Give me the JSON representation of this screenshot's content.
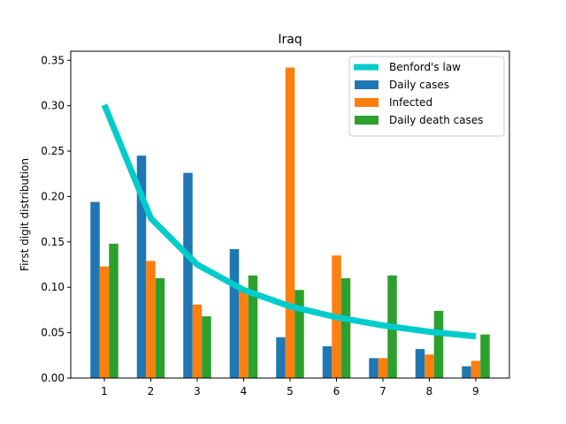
{
  "chart_data": {
    "type": "bar",
    "title": "Iraq",
    "xlabel": "",
    "ylabel": "First digit distribution",
    "categories": [
      "1",
      "2",
      "3",
      "4",
      "5",
      "6",
      "7",
      "8",
      "9"
    ],
    "ylim": [
      0,
      0.36
    ],
    "yticks": [
      "0.00",
      "0.05",
      "0.10",
      "0.15",
      "0.20",
      "0.25",
      "0.30",
      "0.35"
    ],
    "grid": false,
    "legend_position": "top-right",
    "series": [
      {
        "name": "Daily cases",
        "type": "bar",
        "color": "#1f77b4",
        "values": [
          0.194,
          0.245,
          0.226,
          0.142,
          0.045,
          0.035,
          0.022,
          0.032,
          0.013
        ]
      },
      {
        "name": "Infected",
        "type": "bar",
        "color": "#ff7f0e",
        "values": [
          0.123,
          0.129,
          0.081,
          0.097,
          0.342,
          0.135,
          0.022,
          0.026,
          0.019
        ]
      },
      {
        "name": "Daily death cases",
        "type": "bar",
        "color": "#2ca02c",
        "values": [
          0.148,
          0.11,
          0.068,
          0.113,
          0.097,
          0.11,
          0.113,
          0.074,
          0.048
        ]
      },
      {
        "name": "Benford's law",
        "type": "line",
        "color": "#00cccc",
        "values": [
          0.301,
          0.176,
          0.125,
          0.097,
          0.079,
          0.067,
          0.058,
          0.051,
          0.046
        ]
      }
    ]
  }
}
